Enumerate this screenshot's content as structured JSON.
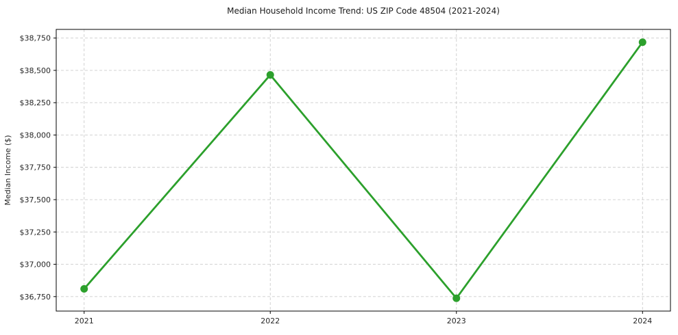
{
  "chart_data": {
    "type": "line",
    "title": "Median Household Income Trend: US ZIP Code 48504 (2021-2024)",
    "xlabel": "",
    "ylabel": "Median Income ($)",
    "categories": [
      "2021",
      "2022",
      "2023",
      "2024"
    ],
    "series": [
      {
        "name": "Median Household Income",
        "values": [
          36810,
          38465,
          36737,
          38718
        ]
      }
    ],
    "ylim": [
      36638,
      38817
    ],
    "xlim_index": [
      -0.15,
      3.15
    ],
    "yticks": [
      {
        "value": 36750,
        "label": "$36,750"
      },
      {
        "value": 37000,
        "label": "$37,000"
      },
      {
        "value": 37250,
        "label": "$37,250"
      },
      {
        "value": 37500,
        "label": "$37,500"
      },
      {
        "value": 37750,
        "label": "$37,750"
      },
      {
        "value": 38000,
        "label": "$38,000"
      },
      {
        "value": 38250,
        "label": "$38,250"
      },
      {
        "value": 38500,
        "label": "$38,500"
      },
      {
        "value": 38750,
        "label": "$38,750"
      }
    ],
    "grid": true,
    "grid_style": "dashed",
    "legend": "none",
    "colors": {
      "line": "#2ca02c",
      "marker": "#2ca02c",
      "grid": "#cccccc",
      "axis": "#000000",
      "text": "#262626"
    }
  }
}
